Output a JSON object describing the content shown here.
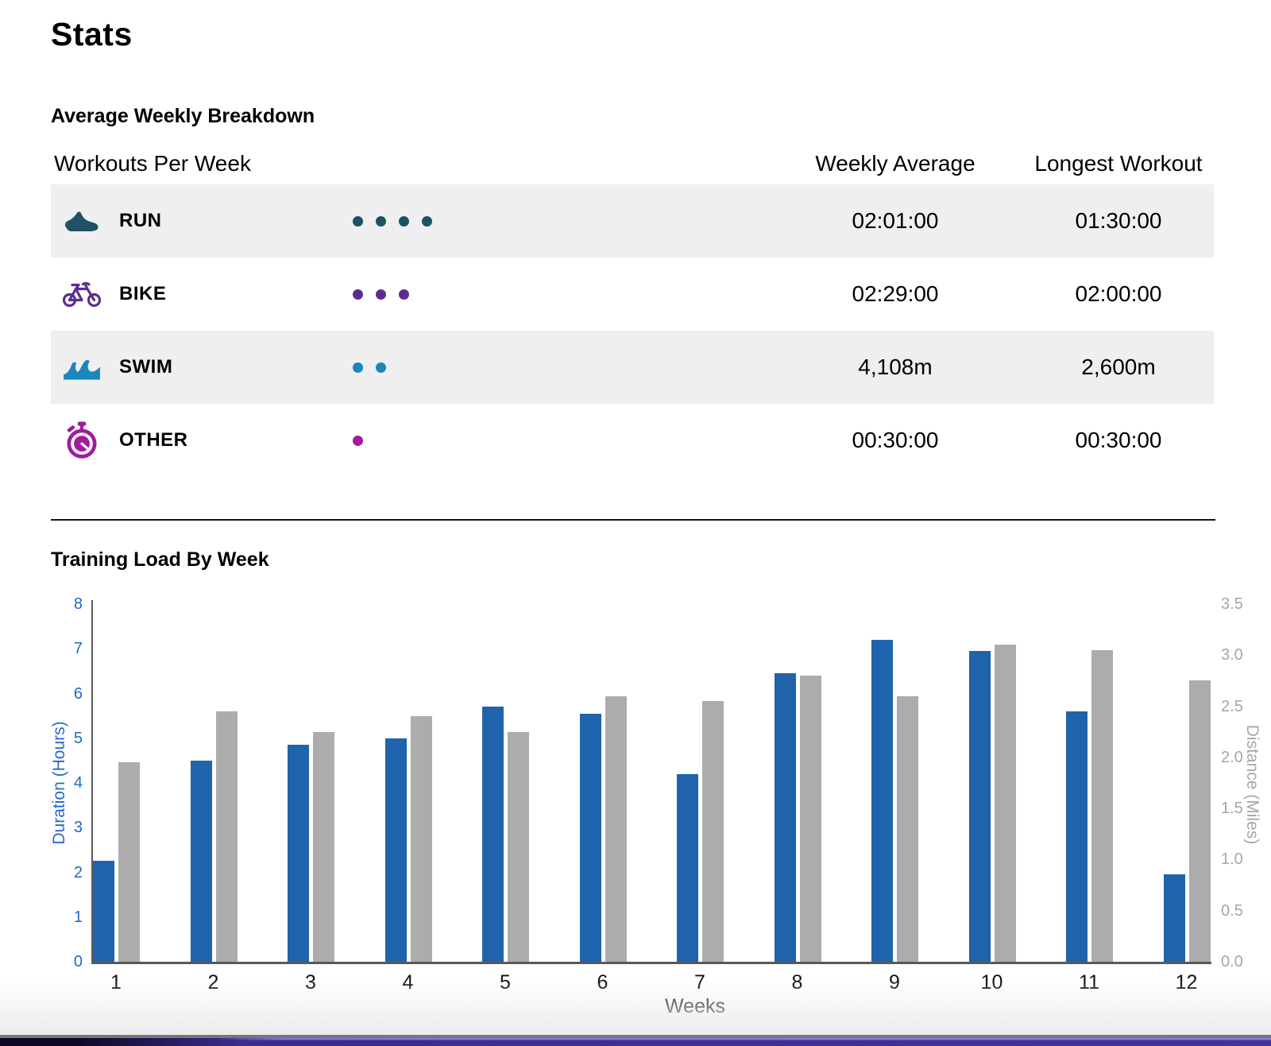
{
  "page": {
    "title": "Stats"
  },
  "breakdown": {
    "heading": "Average Weekly Breakdown",
    "col_workouts": "Workouts Per Week",
    "col_weekly_avg": "Weekly Average",
    "col_longest": "Longest Workout",
    "rows": [
      {
        "label": "RUN",
        "icon": "run-shoe-icon",
        "color": "#1f5063",
        "workouts_per_week_dots": 4,
        "weekly_average": "02:01:00",
        "longest_workout": "01:30:00"
      },
      {
        "label": "BIKE",
        "icon": "bike-icon",
        "color": "#5c2d91",
        "workouts_per_week_dots": 3,
        "weekly_average": "02:29:00",
        "longest_workout": "02:00:00"
      },
      {
        "label": "SWIM",
        "icon": "swim-wave-icon",
        "color": "#1b86bb",
        "workouts_per_week_dots": 2,
        "weekly_average": "4,108m",
        "longest_workout": "2,600m"
      },
      {
        "label": "OTHER",
        "icon": "stopwatch-icon",
        "color": "#a11b9f",
        "workouts_per_week_dots": 1,
        "weekly_average": "00:30:00",
        "longest_workout": "00:30:00"
      }
    ]
  },
  "chart_data": {
    "type": "bar",
    "title": "Training Load By Week",
    "xlabel": "Weeks",
    "categories": [
      "1",
      "2",
      "3",
      "4",
      "5",
      "6",
      "7",
      "8",
      "9",
      "10",
      "11",
      "12"
    ],
    "series": [
      {
        "name": "Duration",
        "axis": "left",
        "color": "#1f63ad",
        "values": [
          2.25,
          4.5,
          4.85,
          5.0,
          5.7,
          5.55,
          4.2,
          6.45,
          7.2,
          6.95,
          5.6,
          1.95
        ]
      },
      {
        "name": "Distance",
        "axis": "right",
        "color": "#acacac",
        "values": [
          1.95,
          2.45,
          2.25,
          2.4,
          2.25,
          2.6,
          2.55,
          2.8,
          2.6,
          3.1,
          3.05,
          2.75
        ]
      }
    ],
    "left_axis": {
      "label": "Duration (Hours)",
      "min": 0,
      "max": 8,
      "ticks": [
        "0",
        "1",
        "2",
        "3",
        "4",
        "5",
        "6",
        "7",
        "8"
      ],
      "color": "#2368c8"
    },
    "right_axis": {
      "label": "Distance (Miles)",
      "min": 0,
      "max": 3.5,
      "ticks": [
        "0.0",
        "0.5",
        "1.0",
        "1.5",
        "2.0",
        "2.5",
        "3.0",
        "3.5"
      ],
      "color": "#a6a6a6"
    },
    "grid": false,
    "legend": "none"
  }
}
